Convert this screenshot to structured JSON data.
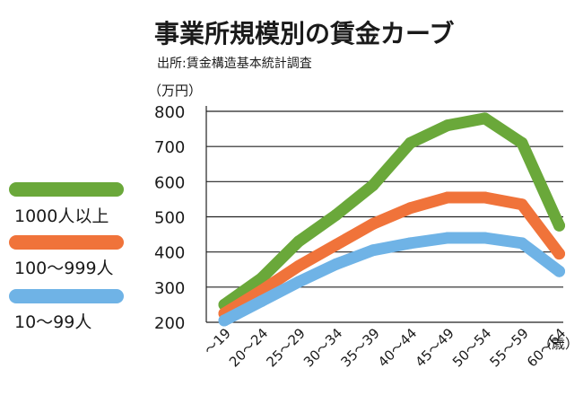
{
  "chart_data": {
    "type": "line",
    "title": "事業所規模別の賃金カーブ",
    "subtitle": "出所:賃金構造基本統計調査",
    "ylabel": "（万円）",
    "xunit": "（歳）",
    "ylim": [
      200,
      800
    ],
    "yticks": [
      200,
      300,
      400,
      500,
      600,
      700,
      800
    ],
    "grid": true,
    "legend_position": "left",
    "categories": [
      "～19",
      "20～24",
      "25～29",
      "30～34",
      "35～39",
      "40～44",
      "45～49",
      "50～54",
      "55～59",
      "60～64"
    ],
    "series": [
      {
        "name": "1000人以上",
        "color": "#6aa83a",
        "values": [
          250,
          325,
          430,
          505,
          590,
          710,
          760,
          780,
          710,
          475
        ]
      },
      {
        "name": "100～999人",
        "color": "#f0733a",
        "values": [
          225,
          290,
          360,
          420,
          480,
          525,
          555,
          555,
          535,
          395
        ]
      },
      {
        "name": "10～99人",
        "color": "#6fb3e6",
        "values": [
          205,
          260,
          315,
          365,
          405,
          425,
          440,
          440,
          425,
          345
        ]
      }
    ]
  }
}
